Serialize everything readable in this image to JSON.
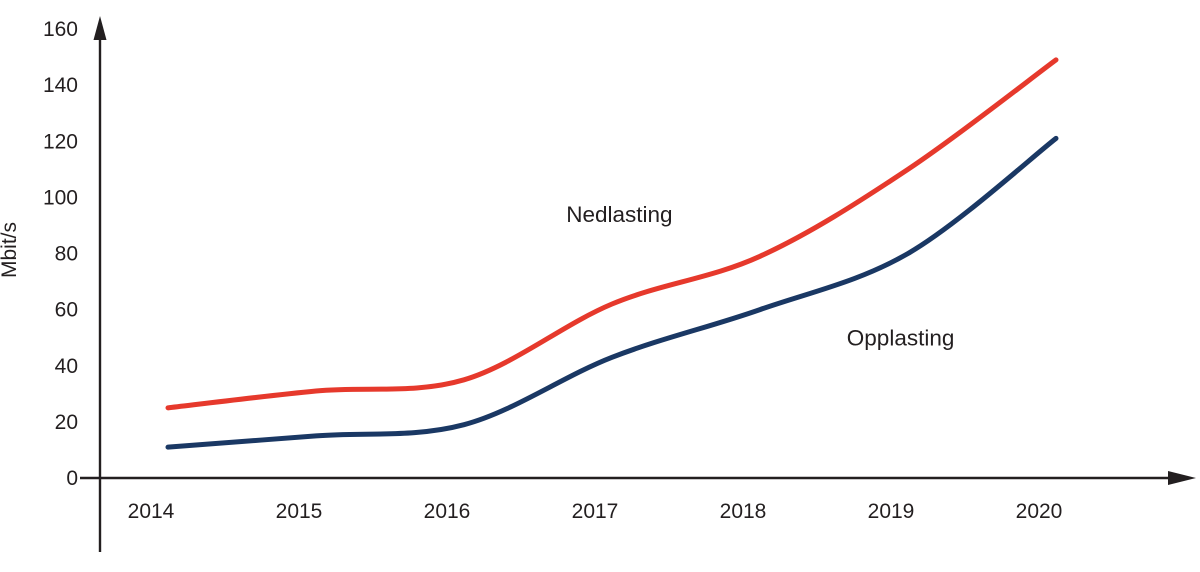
{
  "figure": {
    "background": "#ffffff",
    "text_color": "#231f20"
  },
  "chart_data": {
    "type": "line",
    "title": "",
    "xlabel": "",
    "ylabel": "Mbit/s",
    "categories": [
      2014,
      2015,
      2016,
      2017,
      2018,
      2019,
      2020
    ],
    "y_ticks": [
      0,
      20,
      40,
      60,
      80,
      100,
      120,
      140,
      160
    ],
    "ylim": [
      0,
      160
    ],
    "xlim": [
      2014,
      2020
    ],
    "grid": false,
    "legend": "inline-annotations",
    "axis_color": "#231f20",
    "axis_arrows": [
      "x-right",
      "y-top"
    ],
    "series": [
      {
        "name": "Nedlasting",
        "color": "#e6392c",
        "line_width": 5,
        "values": [
          25,
          31,
          35,
          62,
          79,
          110,
          149
        ],
        "label": {
          "text": "Nedlasting",
          "x": 2017.05,
          "y": 94
        }
      },
      {
        "name": "Opplasting",
        "color": "#1a3864",
        "line_width": 5,
        "values": [
          11,
          15,
          19,
          43,
          60,
          80,
          121
        ],
        "label": {
          "text": "Opplasting",
          "x": 2018.95,
          "y": 50
        }
      }
    ]
  }
}
